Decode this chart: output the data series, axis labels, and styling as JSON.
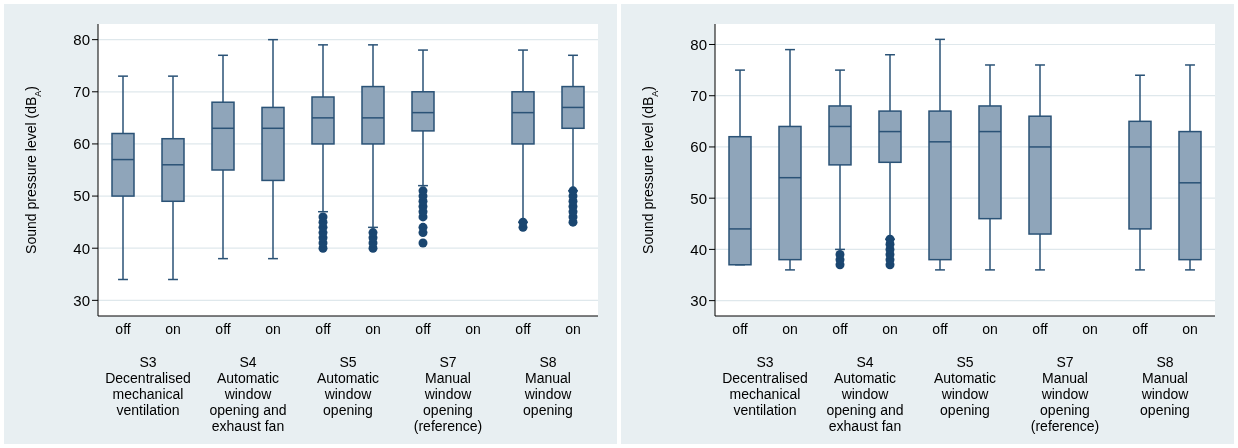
{
  "chart_data": [
    {
      "type": "box",
      "categories": [
        "off",
        "on",
        "off",
        "on",
        "off",
        "on",
        "off",
        "on",
        "off",
        "on"
      ],
      "ylabel": "Sound pressure level (dB$_{A}$)",
      "ylim": [
        27,
        83
      ],
      "yticks": [
        30,
        40,
        50,
        60,
        70,
        80
      ],
      "grid": "y",
      "series": [
        {
          "color": "#8fa5ba",
          "boxes": [
            {
              "low": 34,
              "q1": 50,
              "median": 57,
              "q3": 62,
              "high": 73
            },
            {
              "low": 34,
              "q1": 49,
              "median": 56,
              "q3": 61,
              "high": 73
            },
            {
              "low": 38,
              "q1": 55,
              "median": 63,
              "q3": 68,
              "high": 77
            },
            {
              "low": 38,
              "q1": 53,
              "median": 63,
              "q3": 67,
              "high": 80
            },
            {
              "low": 47,
              "q1": 60,
              "median": 65,
              "q3": 69,
              "high": 79,
              "outliers": [
                40,
                41,
                42,
                43,
                44,
                45,
                46
              ]
            },
            {
              "low": 44,
              "q1": 60,
              "median": 65,
              "q3": 71,
              "high": 79,
              "outliers": [
                40,
                41,
                42,
                43
              ]
            },
            {
              "low": 52,
              "q1": 62.5,
              "median": 66,
              "q3": 70,
              "high": 78,
              "outliers": [
                41,
                43,
                44,
                46,
                47,
                48,
                49,
                50,
                51
              ]
            },
            null,
            {
              "low": 45,
              "q1": 60,
              "median": 66,
              "q3": 70,
              "high": 78,
              "outliers": [
                44,
                45
              ]
            },
            {
              "low": 51,
              "q1": 63,
              "median": 67,
              "q3": 71,
              "high": 77,
              "outliers": [
                45,
                46,
                47,
                48,
                49,
                50,
                51
              ]
            }
          ]
        }
      ],
      "annotations": [
        "S3\nDecentralised\nmechanical\nventilation",
        "S4\nAutomatic\nwindow\nopening and\nexhaust fan",
        "S5\nAutomatic\nwindow\nopening",
        "S7\nManual\nwindow\nopening\n(reference)",
        "S8\nManual\nwindow\nopening"
      ]
    },
    {
      "type": "box",
      "categories": [
        "off",
        "on",
        "off",
        "on",
        "off",
        "on",
        "off",
        "on",
        "off",
        "on"
      ],
      "ylabel": "Sound pressure level (dB$_{A}$)",
      "ylim": [
        27,
        84
      ],
      "yticks": [
        30,
        40,
        50,
        60,
        70,
        80
      ],
      "grid": "y",
      "series": [
        {
          "color": "#8fa5ba",
          "boxes": [
            {
              "low": 37,
              "q1": 37,
              "median": 44,
              "q3": 62,
              "high": 75
            },
            {
              "low": 36,
              "q1": 38,
              "median": 54,
              "q3": 64,
              "high": 79
            },
            {
              "low": 40,
              "q1": 56.5,
              "median": 64,
              "q3": 68,
              "high": 75,
              "outliers": [
                37,
                38,
                39
              ]
            },
            {
              "low": 42,
              "q1": 57,
              "median": 63,
              "q3": 67,
              "high": 78,
              "outliers": [
                37,
                38,
                39,
                40,
                41,
                42
              ]
            },
            {
              "low": 36,
              "q1": 38,
              "median": 61,
              "q3": 67,
              "high": 81
            },
            {
              "low": 36,
              "q1": 46,
              "median": 63,
              "q3": 68,
              "high": 76
            },
            {
              "low": 36,
              "q1": 43,
              "median": 60,
              "q3": 66,
              "high": 76
            },
            null,
            {
              "low": 36,
              "q1": 44,
              "median": 60,
              "q3": 65,
              "high": 74
            },
            {
              "low": 36,
              "q1": 38,
              "median": 53,
              "q3": 63,
              "high": 76
            }
          ]
        }
      ],
      "annotations": [
        "S3\nDecentralised\nmechanical\nventilation",
        "S4\nAutomatic\nwindow\nopening and\nexhaust fan",
        "S5\nAutomatic\nwindow\nopening",
        "S7\nManual\nwindow\nopening\n(reference)",
        "S8\nManual\nwindow\nopening"
      ]
    }
  ]
}
